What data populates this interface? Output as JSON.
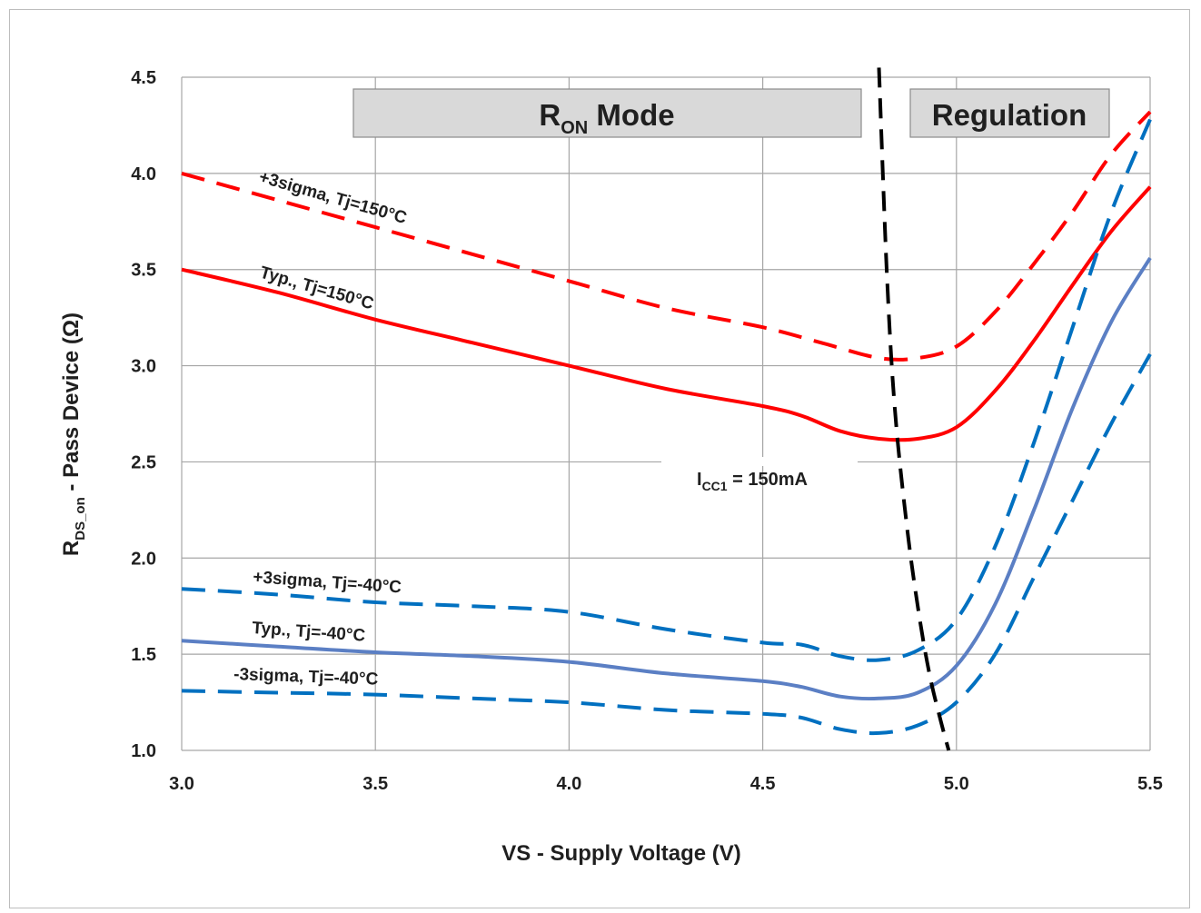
{
  "chart_data": {
    "type": "line",
    "xlabel": "VS - Supply Voltage (V)",
    "ylabel_main": "R",
    "ylabel_sub": "DS_on",
    "ylabel_rest": " - Pass Device (Ω)",
    "xlim": [
      3.0,
      5.5
    ],
    "ylim": [
      1.0,
      4.5
    ],
    "x_ticks": [
      "3.0",
      "3.5",
      "4.0",
      "4.5",
      "5.0",
      "5.5"
    ],
    "y_ticks": [
      "1.0",
      "1.5",
      "2.0",
      "2.5",
      "3.0",
      "3.5",
      "4.0",
      "4.5"
    ],
    "grid": true,
    "region_labels": {
      "ron_main": "R",
      "ron_sub": "ON",
      "ron_rest": " Mode",
      "regulation": "Regulation"
    },
    "boundary": {
      "label_main": "I",
      "label_sub": "CC1",
      "label_rest": " = 150mA",
      "color": "#000000",
      "points": [
        [
          4.8,
          4.55
        ],
        [
          4.82,
          3.5
        ],
        [
          4.84,
          2.8
        ],
        [
          4.87,
          2.2
        ],
        [
          4.9,
          1.75
        ],
        [
          4.93,
          1.4
        ],
        [
          4.96,
          1.15
        ],
        [
          4.98,
          1.0
        ]
      ]
    },
    "series": [
      {
        "name": "+3sigma, Tj=150°C",
        "color": "#ff0000",
        "dash": true,
        "points": [
          [
            3.0,
            4.0
          ],
          [
            3.25,
            3.86
          ],
          [
            3.5,
            3.72
          ],
          [
            3.75,
            3.58
          ],
          [
            4.0,
            3.44
          ],
          [
            4.25,
            3.3
          ],
          [
            4.5,
            3.2
          ],
          [
            4.65,
            3.12
          ],
          [
            4.8,
            3.04
          ],
          [
            4.9,
            3.04
          ],
          [
            5.0,
            3.1
          ],
          [
            5.1,
            3.28
          ],
          [
            5.2,
            3.53
          ],
          [
            5.3,
            3.8
          ],
          [
            5.4,
            4.1
          ],
          [
            5.5,
            4.32
          ]
        ]
      },
      {
        "name": "Typ., Tj=150°C",
        "color": "#ff0000",
        "dash": false,
        "points": [
          [
            3.0,
            3.5
          ],
          [
            3.25,
            3.38
          ],
          [
            3.5,
            3.24
          ],
          [
            3.75,
            3.12
          ],
          [
            4.0,
            3.0
          ],
          [
            4.25,
            2.88
          ],
          [
            4.5,
            2.79
          ],
          [
            4.6,
            2.74
          ],
          [
            4.7,
            2.66
          ],
          [
            4.8,
            2.62
          ],
          [
            4.9,
            2.62
          ],
          [
            5.0,
            2.68
          ],
          [
            5.1,
            2.87
          ],
          [
            5.2,
            3.13
          ],
          [
            5.3,
            3.42
          ],
          [
            5.4,
            3.7
          ],
          [
            5.5,
            3.93
          ]
        ]
      },
      {
        "name": "+3sigma, Tj=-40°C",
        "color": "#0070c0",
        "dash": true,
        "points": [
          [
            3.0,
            1.84
          ],
          [
            3.25,
            1.81
          ],
          [
            3.5,
            1.77
          ],
          [
            3.75,
            1.75
          ],
          [
            4.0,
            1.72
          ],
          [
            4.25,
            1.63
          ],
          [
            4.5,
            1.56
          ],
          [
            4.6,
            1.55
          ],
          [
            4.7,
            1.49
          ],
          [
            4.8,
            1.47
          ],
          [
            4.9,
            1.52
          ],
          [
            5.0,
            1.68
          ],
          [
            5.1,
            2.06
          ],
          [
            5.2,
            2.6
          ],
          [
            5.3,
            3.2
          ],
          [
            5.4,
            3.8
          ],
          [
            5.5,
            4.28
          ]
        ]
      },
      {
        "name": "Typ., Tj=-40°C",
        "color": "#5b7fc4",
        "dash": false,
        "points": [
          [
            3.0,
            1.57
          ],
          [
            3.25,
            1.54
          ],
          [
            3.5,
            1.51
          ],
          [
            3.75,
            1.49
          ],
          [
            4.0,
            1.46
          ],
          [
            4.25,
            1.4
          ],
          [
            4.5,
            1.36
          ],
          [
            4.6,
            1.33
          ],
          [
            4.7,
            1.28
          ],
          [
            4.8,
            1.27
          ],
          [
            4.9,
            1.3
          ],
          [
            5.0,
            1.44
          ],
          [
            5.1,
            1.76
          ],
          [
            5.2,
            2.25
          ],
          [
            5.3,
            2.78
          ],
          [
            5.4,
            3.23
          ],
          [
            5.5,
            3.56
          ]
        ]
      },
      {
        "name": "-3sigma, Tj=-40°C",
        "color": "#0070c0",
        "dash": true,
        "points": [
          [
            3.0,
            1.31
          ],
          [
            3.25,
            1.3
          ],
          [
            3.5,
            1.29
          ],
          [
            3.75,
            1.27
          ],
          [
            4.0,
            1.25
          ],
          [
            4.25,
            1.21
          ],
          [
            4.5,
            1.19
          ],
          [
            4.6,
            1.17
          ],
          [
            4.7,
            1.11
          ],
          [
            4.8,
            1.09
          ],
          [
            4.9,
            1.13
          ],
          [
            5.0,
            1.25
          ],
          [
            5.1,
            1.5
          ],
          [
            5.2,
            1.9
          ],
          [
            5.3,
            2.3
          ],
          [
            5.4,
            2.7
          ],
          [
            5.5,
            3.06
          ]
        ]
      }
    ]
  }
}
